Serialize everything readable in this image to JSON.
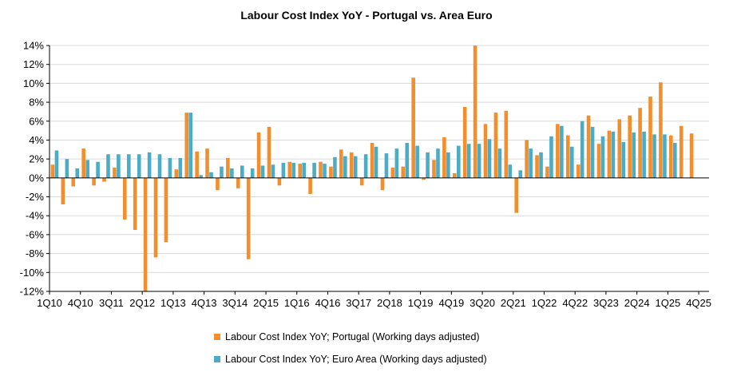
{
  "chart_data": {
    "type": "bar",
    "title": "Labour Cost Index YoY  -  Portugal vs. Area Euro",
    "xlabel": "",
    "ylabel": "",
    "ylim": [
      -12,
      14
    ],
    "yticks": [
      "14%",
      "12%",
      "10%",
      "8%",
      "6%",
      "4%",
      "2%",
      "0%",
      "-2%",
      "-4%",
      "-6%",
      "-8%",
      "-10%",
      "-12%"
    ],
    "ytick_values": [
      14,
      12,
      10,
      8,
      6,
      4,
      2,
      0,
      -2,
      -4,
      -6,
      -8,
      -10,
      -12
    ],
    "gridlines": true,
    "legend_position": "bottom",
    "categories": [
      "1Q10",
      "2Q10",
      "3Q10",
      "4Q10",
      "1Q11",
      "2Q11",
      "3Q11",
      "4Q11",
      "1Q12",
      "2Q12",
      "3Q12",
      "4Q12",
      "1Q13",
      "2Q13",
      "3Q13",
      "4Q13",
      "1Q14",
      "2Q14",
      "3Q14",
      "4Q14",
      "1Q15",
      "2Q15",
      "3Q15",
      "4Q15",
      "1Q16",
      "2Q16",
      "3Q16",
      "4Q16",
      "1Q17",
      "2Q17",
      "3Q17",
      "4Q17",
      "1Q18",
      "2Q18",
      "3Q18",
      "4Q18",
      "1Q19",
      "2Q19",
      "3Q19",
      "4Q19",
      "1Q20",
      "2Q20",
      "3Q20",
      "4Q20",
      "1Q21",
      "2Q21",
      "3Q21",
      "4Q21",
      "1Q22",
      "2Q22",
      "3Q22",
      "4Q22",
      "1Q23",
      "2Q23",
      "3Q23",
      "4Q23",
      "1Q24",
      "2Q24",
      "3Q24",
      "4Q24",
      "1Q25",
      "2Q25",
      "3Q25",
      "4Q25"
    ],
    "xtick_labels": [
      "1Q10",
      "4Q10",
      "3Q11",
      "2Q12",
      "1Q13",
      "4Q13",
      "3Q14",
      "2Q15",
      "1Q16",
      "4Q16",
      "3Q17",
      "2Q18",
      "1Q19",
      "4Q19",
      "3Q20",
      "2Q21",
      "1Q22",
      "4Q22",
      "3Q23",
      "2Q24",
      "1Q25",
      "4Q25"
    ],
    "series": [
      {
        "name": "Labour Cost Index YoY; Portugal (Working days adjusted)",
        "color": "#f28e2b",
        "values": [
          1.4,
          -2.8,
          -0.9,
          3.1,
          -0.8,
          -0.4,
          1.1,
          -4.4,
          -5.5,
          -12.0,
          -8.4,
          -6.8,
          0.9,
          6.9,
          2.8,
          3.1,
          -1.3,
          2.1,
          -1.1,
          -8.6,
          4.8,
          5.4,
          -0.8,
          1.7,
          1.5,
          -1.7,
          1.7,
          1.2,
          3.0,
          2.7,
          -0.8,
          3.7,
          -1.3,
          1.1,
          1.2,
          10.6,
          -0.2,
          1.9,
          4.3,
          0.5,
          7.5,
          14.0,
          5.7,
          6.9,
          7.1,
          -3.7,
          4.0,
          2.4,
          1.2,
          5.7,
          4.5,
          1.4,
          6.6,
          3.6,
          5.0,
          6.2,
          6.6,
          7.4,
          8.6,
          10.1,
          4.5,
          5.5,
          4.7,
          null
        ]
      },
      {
        "name": "Labour Cost Index YoY; Euro Area (Working days adjusted)",
        "color": "#4bacc6",
        "values": [
          2.9,
          2.0,
          1.0,
          1.9,
          1.7,
          2.5,
          2.5,
          2.5,
          2.5,
          2.7,
          2.5,
          2.1,
          2.1,
          6.9,
          0.3,
          0.6,
          1.2,
          1.0,
          1.3,
          1.0,
          1.3,
          1.4,
          1.6,
          1.6,
          1.6,
          1.6,
          1.5,
          2.2,
          2.3,
          2.3,
          2.5,
          3.3,
          2.6,
          3.1,
          3.7,
          3.4,
          2.7,
          3.1,
          2.7,
          3.4,
          3.6,
          3.6,
          4.1,
          3.1,
          1.4,
          0.8,
          3.1,
          2.7,
          4.4,
          5.5,
          3.3,
          6.0,
          5.4,
          4.4,
          4.9,
          3.8,
          4.8,
          4.9,
          4.6,
          4.6,
          3.7,
          null,
          null,
          null
        ]
      }
    ]
  }
}
